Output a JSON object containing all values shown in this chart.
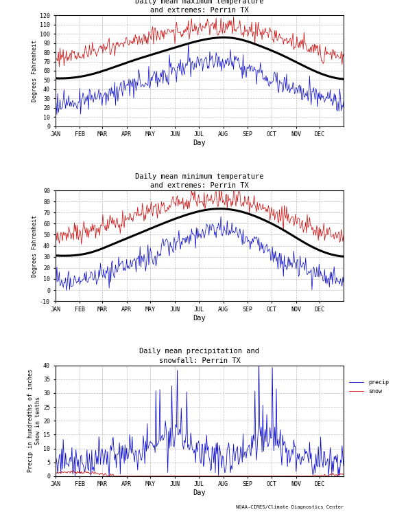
{
  "title1": "Daily mean maximum temperature\nand extremes: Perrin TX",
  "title2": "Daily mean minimum temperature\nand extremes: Perrin TX",
  "title3": "Daily mean precipitation and\nsnowfall: Perrin TX",
  "ylabel1": "Degrees Fahrenheit",
  "ylabel2": "Degrees Fahrenheit",
  "ylabel3": "Precip in hundredths of inches\nSnow in tenths",
  "xlabel": "Day",
  "months": [
    "JAN",
    "FEB",
    "MAR",
    "APR",
    "MAY",
    "JUN",
    "JUL",
    "AUG",
    "SEP",
    "OCT",
    "NOV",
    "DEC"
  ],
  "max_mean_monthly": [
    52,
    56,
    64,
    73,
    81,
    89,
    95,
    95,
    87,
    76,
    63,
    53
  ],
  "max_high_monthly": [
    76,
    80,
    86,
    94,
    100,
    103,
    107,
    106,
    102,
    94,
    85,
    78
  ],
  "max_low_monthly": [
    26,
    30,
    38,
    46,
    55,
    64,
    70,
    69,
    58,
    46,
    36,
    26
  ],
  "min_mean_monthly": [
    31,
    34,
    42,
    51,
    60,
    68,
    73,
    72,
    65,
    54,
    41,
    32
  ],
  "min_high_monthly": [
    50,
    54,
    60,
    68,
    75,
    80,
    82,
    81,
    75,
    64,
    56,
    50
  ],
  "min_low_monthly": [
    8,
    10,
    18,
    26,
    36,
    46,
    55,
    53,
    40,
    26,
    18,
    10
  ],
  "precip_monthly": [
    4,
    5,
    8,
    9,
    14,
    12,
    7,
    7,
    12,
    10,
    6,
    4
  ],
  "snow_monthly": [
    1.5,
    1.2,
    0.3,
    0.0,
    0.0,
    0.0,
    0.0,
    0.0,
    0.0,
    0.0,
    0.1,
    0.4
  ],
  "bg_color": "#ffffff",
  "grid_color": "#aaaaaa",
  "red_color": "#cc0000",
  "blue_color": "#0000cc",
  "black_color": "#000000",
  "footer": "NOAA-CIRES/Climate Diagnostics Center",
  "month_day_starts": [
    1,
    32,
    60,
    91,
    121,
    152,
    182,
    213,
    244,
    274,
    305,
    335
  ]
}
